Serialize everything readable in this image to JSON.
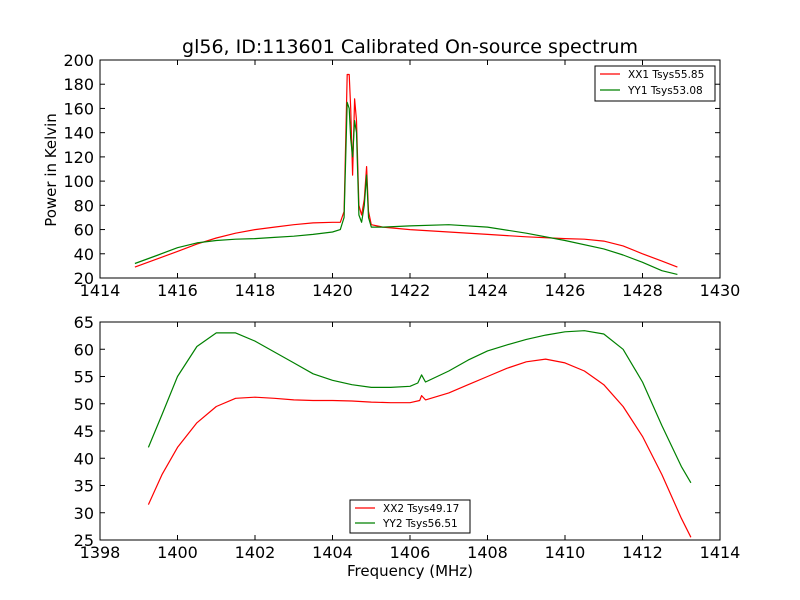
{
  "chart_data": [
    {
      "type": "line",
      "title": "gl56, ID:113601 Calibrated On-source spectrum",
      "xlabel": "",
      "ylabel": "Power in Kelvin",
      "xlim": [
        1414,
        1430
      ],
      "ylim": [
        20,
        200
      ],
      "xticks": [
        "1414",
        "1416",
        "1418",
        "1420",
        "1422",
        "1424",
        "1426",
        "1428",
        "1430"
      ],
      "yticks": [
        "20",
        "40",
        "60",
        "80",
        "100",
        "120",
        "140",
        "160",
        "180",
        "200"
      ],
      "legend_position": "top-right",
      "grid": false,
      "series": [
        {
          "name": "XX1 Tsys55.85",
          "color": "#ff0000",
          "points": [
            [
              1414.9,
              29
            ],
            [
              1415.5,
              36
            ],
            [
              1416.0,
              42
            ],
            [
              1416.5,
              48
            ],
            [
              1417.0,
              53
            ],
            [
              1417.5,
              57
            ],
            [
              1418.0,
              60
            ],
            [
              1418.5,
              62
            ],
            [
              1419.0,
              64
            ],
            [
              1419.5,
              65.5
            ],
            [
              1420.0,
              66
            ],
            [
              1420.2,
              66
            ],
            [
              1420.3,
              75
            ],
            [
              1420.38,
              188
            ],
            [
              1420.43,
              188
            ],
            [
              1420.47,
              160
            ],
            [
              1420.52,
              105
            ],
            [
              1420.57,
              168
            ],
            [
              1420.62,
              150
            ],
            [
              1420.68,
              80
            ],
            [
              1420.75,
              72
            ],
            [
              1420.82,
              85
            ],
            [
              1420.88,
              112
            ],
            [
              1420.93,
              75
            ],
            [
              1421.0,
              64
            ],
            [
              1421.3,
              62
            ],
            [
              1422.0,
              60
            ],
            [
              1423.0,
              58
            ],
            [
              1424.0,
              56
            ],
            [
              1425.0,
              54
            ],
            [
              1426.0,
              52.5
            ],
            [
              1426.5,
              52
            ],
            [
              1427.0,
              50.5
            ],
            [
              1427.5,
              46.5
            ],
            [
              1428.0,
              40
            ],
            [
              1428.5,
              34
            ],
            [
              1428.9,
              29
            ]
          ]
        },
        {
          "name": "YY1 Tsys53.08",
          "color": "#008000",
          "points": [
            [
              1414.9,
              32
            ],
            [
              1415.5,
              39
            ],
            [
              1416.0,
              45
            ],
            [
              1416.5,
              49
            ],
            [
              1417.0,
              51
            ],
            [
              1417.5,
              52
            ],
            [
              1418.0,
              52.5
            ],
            [
              1418.5,
              53.5
            ],
            [
              1419.0,
              54.5
            ],
            [
              1419.5,
              56
            ],
            [
              1420.0,
              58
            ],
            [
              1420.2,
              60
            ],
            [
              1420.3,
              70
            ],
            [
              1420.38,
              165
            ],
            [
              1420.43,
              160
            ],
            [
              1420.47,
              135
            ],
            [
              1420.52,
              120
            ],
            [
              1420.57,
              150
            ],
            [
              1420.62,
              140
            ],
            [
              1420.68,
              72
            ],
            [
              1420.75,
              66
            ],
            [
              1420.82,
              80
            ],
            [
              1420.88,
              105
            ],
            [
              1420.93,
              70
            ],
            [
              1421.0,
              62
            ],
            [
              1421.3,
              62
            ],
            [
              1422.0,
              63
            ],
            [
              1423.0,
              64
            ],
            [
              1424.0,
              62
            ],
            [
              1425.0,
              57
            ],
            [
              1426.0,
              51
            ],
            [
              1427.0,
              44
            ],
            [
              1427.5,
              39
            ],
            [
              1428.0,
              33
            ],
            [
              1428.5,
              26
            ],
            [
              1428.9,
              23
            ]
          ]
        }
      ]
    },
    {
      "type": "line",
      "title": "",
      "xlabel": "Frequency (MHz)",
      "ylabel": "",
      "xlim": [
        1398,
        1414
      ],
      "ylim": [
        25,
        65
      ],
      "xticks": [
        "1398",
        "1400",
        "1402",
        "1404",
        "1406",
        "1408",
        "1410",
        "1412",
        "1414"
      ],
      "yticks": [
        "25",
        "30",
        "35",
        "40",
        "45",
        "50",
        "55",
        "60",
        "65"
      ],
      "legend_position": "bottom-center",
      "grid": false,
      "series": [
        {
          "name": "XX2 Tsys49.17",
          "color": "#ff0000",
          "points": [
            [
              1399.25,
              31.5
            ],
            [
              1399.6,
              37
            ],
            [
              1400.0,
              42
            ],
            [
              1400.5,
              46.5
            ],
            [
              1401.0,
              49.5
            ],
            [
              1401.5,
              51
            ],
            [
              1402.0,
              51.2
            ],
            [
              1402.5,
              51
            ],
            [
              1403.0,
              50.7
            ],
            [
              1403.5,
              50.6
            ],
            [
              1404.0,
              50.6
            ],
            [
              1404.5,
              50.5
            ],
            [
              1405.0,
              50.3
            ],
            [
              1405.5,
              50.2
            ],
            [
              1406.0,
              50.2
            ],
            [
              1406.25,
              50.6
            ],
            [
              1406.3,
              51.5
            ],
            [
              1406.4,
              50.7
            ],
            [
              1407.0,
              52
            ],
            [
              1407.5,
              53.5
            ],
            [
              1408.0,
              55
            ],
            [
              1408.5,
              56.5
            ],
            [
              1409.0,
              57.7
            ],
            [
              1409.5,
              58.2
            ],
            [
              1410.0,
              57.5
            ],
            [
              1410.5,
              56
            ],
            [
              1411.0,
              53.5
            ],
            [
              1411.5,
              49.5
            ],
            [
              1412.0,
              44
            ],
            [
              1412.5,
              37
            ],
            [
              1413.0,
              29
            ],
            [
              1413.25,
              25.5
            ]
          ]
        },
        {
          "name": "YY2 Tsys56.51",
          "color": "#008000",
          "points": [
            [
              1399.25,
              42
            ],
            [
              1399.6,
              48
            ],
            [
              1400.0,
              55
            ],
            [
              1400.5,
              60.5
            ],
            [
              1401.0,
              63
            ],
            [
              1401.5,
              63
            ],
            [
              1402.0,
              61.5
            ],
            [
              1402.5,
              59.5
            ],
            [
              1403.0,
              57.5
            ],
            [
              1403.5,
              55.5
            ],
            [
              1404.0,
              54.3
            ],
            [
              1404.5,
              53.5
            ],
            [
              1405.0,
              53
            ],
            [
              1405.5,
              53
            ],
            [
              1406.0,
              53.2
            ],
            [
              1406.2,
              53.8
            ],
            [
              1406.3,
              55.3
            ],
            [
              1406.4,
              54
            ],
            [
              1407.0,
              56
            ],
            [
              1407.5,
              58
            ],
            [
              1408.0,
              59.7
            ],
            [
              1408.5,
              60.8
            ],
            [
              1409.0,
              61.8
            ],
            [
              1409.5,
              62.6
            ],
            [
              1410.0,
              63.2
            ],
            [
              1410.5,
              63.4
            ],
            [
              1411.0,
              62.8
            ],
            [
              1411.5,
              60
            ],
            [
              1412.0,
              54
            ],
            [
              1412.5,
              46
            ],
            [
              1413.0,
              38.5
            ],
            [
              1413.25,
              35.5
            ]
          ]
        }
      ]
    }
  ]
}
